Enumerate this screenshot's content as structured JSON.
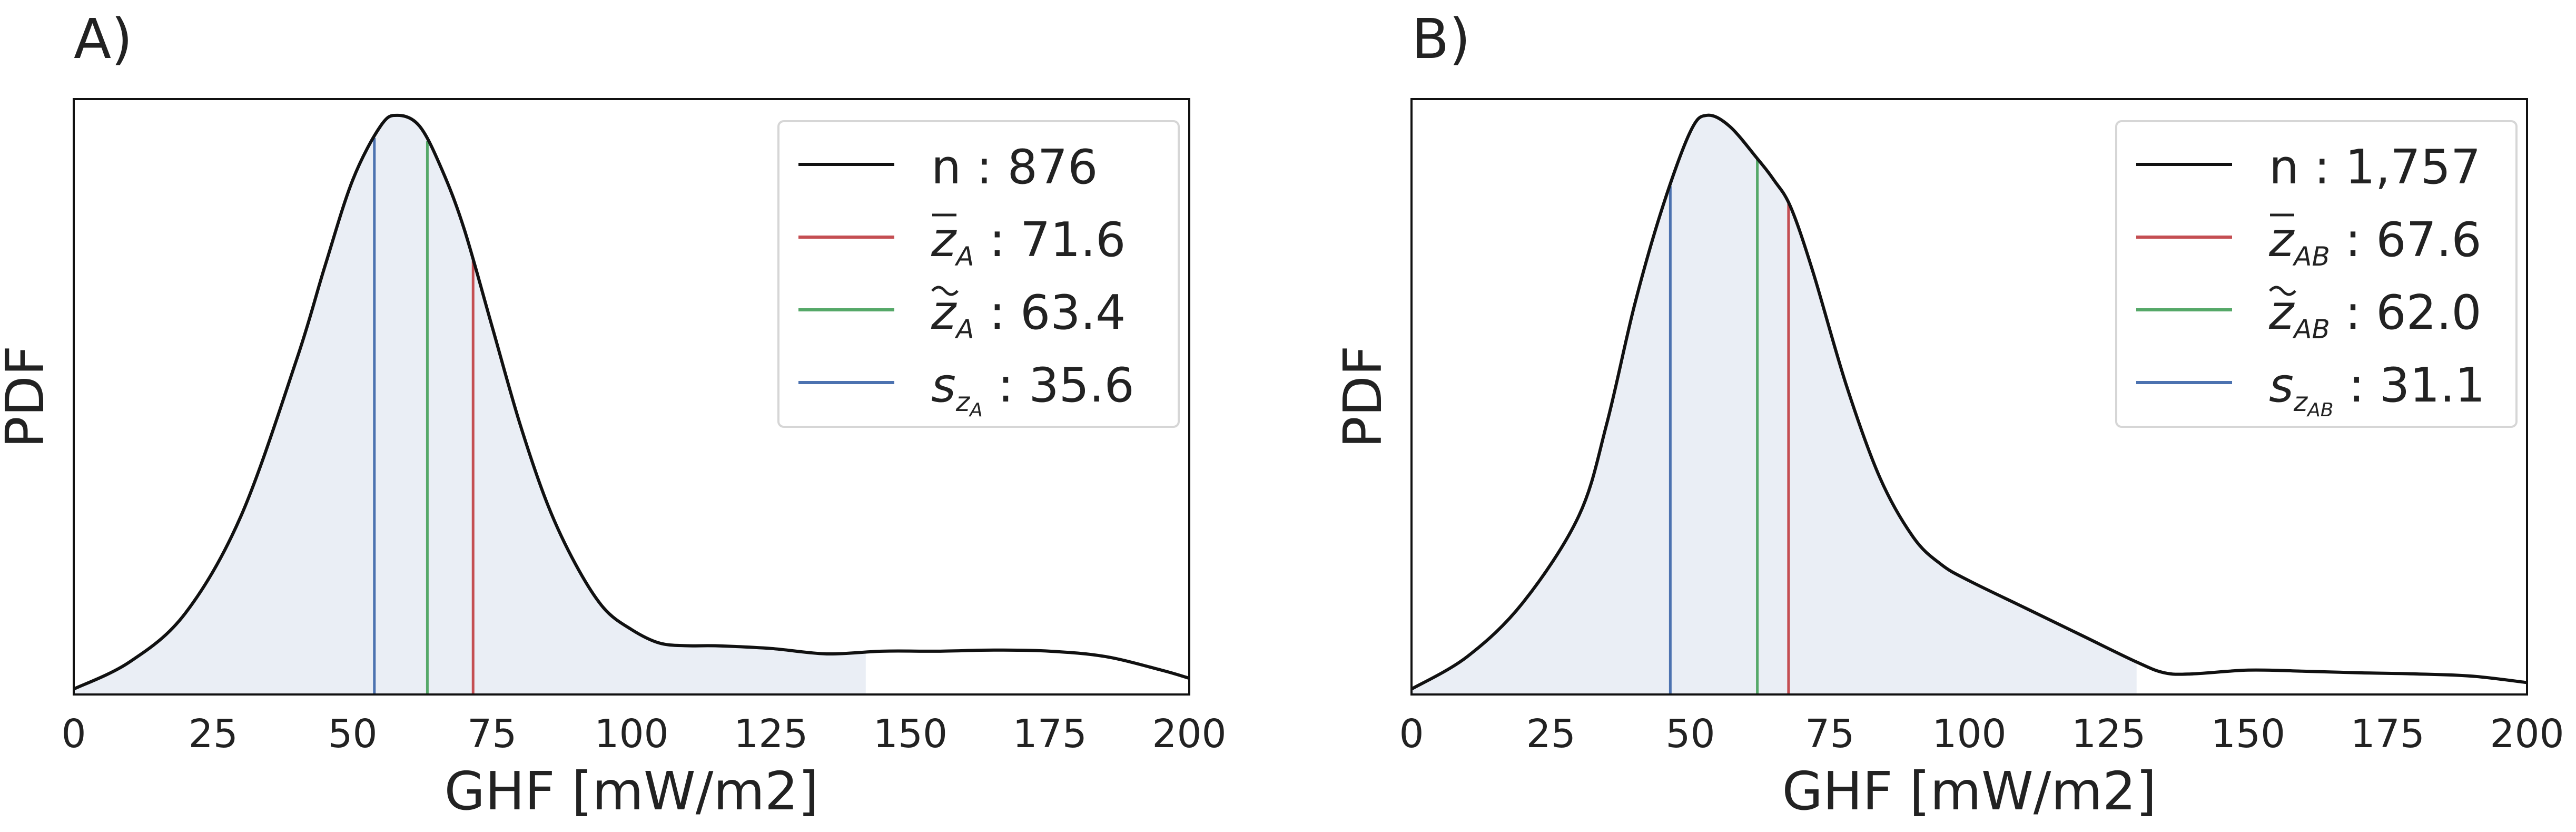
{
  "chart_data": [
    {
      "type": "area",
      "panel_label": "A)",
      "xlabel": "GHF [mW/m2]",
      "ylabel": "PDF",
      "xlim": [
        0,
        200
      ],
      "ylim": [
        0,
        1.1
      ],
      "xticks": [
        "0",
        "25",
        "50",
        "75",
        "100",
        "125",
        "150",
        "175",
        "200"
      ],
      "grid": false,
      "legend_position": "top-right",
      "fill_color": "#eaeef5",
      "fill_upto_x": 142,
      "curve": {
        "x": [
          0,
          10,
          20,
          30,
          40,
          45,
          50,
          55,
          58,
          62,
          66,
          70,
          75,
          80,
          85,
          90,
          95,
          100,
          105,
          110,
          115,
          125,
          135,
          145,
          155,
          165,
          175,
          185,
          195,
          200
        ],
        "y": [
          0.01,
          0.06,
          0.15,
          0.33,
          0.62,
          0.79,
          0.95,
          1.05,
          1.07,
          1.05,
          0.97,
          0.86,
          0.68,
          0.5,
          0.35,
          0.24,
          0.16,
          0.12,
          0.095,
          0.09,
          0.09,
          0.085,
          0.075,
          0.08,
          0.08,
          0.082,
          0.08,
          0.07,
          0.045,
          0.03
        ]
      },
      "vlines": [
        {
          "x": 53.9,
          "color": "#4c72b0"
        },
        {
          "x": 63.4,
          "color": "#55a868"
        },
        {
          "x": 71.6,
          "color": "#c44e52"
        }
      ],
      "legend": [
        {
          "sym": "n",
          "sub": "",
          "subsub": "",
          "value": ": 876",
          "style": "plain",
          "color": "#111111"
        },
        {
          "sym": "z",
          "sub": "A",
          "subsub": "",
          "value": ": 71.6",
          "style": "bar",
          "color": "#c44e52"
        },
        {
          "sym": "z",
          "sub": "A",
          "subsub": "",
          "value": ": 63.4",
          "style": "tilde",
          "color": "#55a868"
        },
        {
          "sym": "s",
          "sub": "z",
          "subsub": "A",
          "value": ": 35.6",
          "style": "plain",
          "color": "#4c72b0"
        }
      ]
    },
    {
      "type": "area",
      "panel_label": "B)",
      "xlabel": "GHF [mW/m2]",
      "ylabel": "PDF",
      "xlim": [
        0,
        200
      ],
      "ylim": [
        0,
        1.1
      ],
      "xticks": [
        "0",
        "25",
        "50",
        "75",
        "100",
        "125",
        "150",
        "175",
        "200"
      ],
      "grid": false,
      "legend_position": "top-right",
      "fill_color": "#eaeef5",
      "fill_upto_x": 130,
      "curve": {
        "x": [
          0,
          10,
          20,
          30,
          35,
          40,
          45,
          50,
          53,
          57,
          62,
          65,
          68,
          72,
          78,
          84,
          90,
          95,
          100,
          110,
          120,
          130,
          135,
          140,
          150,
          160,
          170,
          180,
          190,
          200
        ],
        "y": [
          0.01,
          0.07,
          0.17,
          0.33,
          0.5,
          0.72,
          0.9,
          1.04,
          1.07,
          1.05,
          0.99,
          0.95,
          0.9,
          0.78,
          0.57,
          0.4,
          0.29,
          0.24,
          0.21,
          0.16,
          0.11,
          0.06,
          0.04,
          0.038,
          0.045,
          0.043,
          0.04,
          0.038,
          0.034,
          0.022
        ]
      },
      "vlines": [
        {
          "x": 46.4,
          "color": "#4c72b0"
        },
        {
          "x": 62.0,
          "color": "#55a868"
        },
        {
          "x": 67.6,
          "color": "#c44e52"
        }
      ],
      "legend": [
        {
          "sym": "n",
          "sub": "",
          "subsub": "",
          "value": " : 1,757",
          "style": "plain",
          "color": "#111111"
        },
        {
          "sym": "z",
          "sub": "AB",
          "subsub": "",
          "value": ": 67.6",
          "style": "bar",
          "color": "#c44e52"
        },
        {
          "sym": "z",
          "sub": "AB",
          "subsub": "",
          "value": ": 62.0",
          "style": "tilde",
          "color": "#55a868"
        },
        {
          "sym": "s",
          "sub": "z",
          "subsub": "AB",
          "value": ": 31.1",
          "style": "plain",
          "color": "#4c72b0"
        }
      ]
    }
  ]
}
